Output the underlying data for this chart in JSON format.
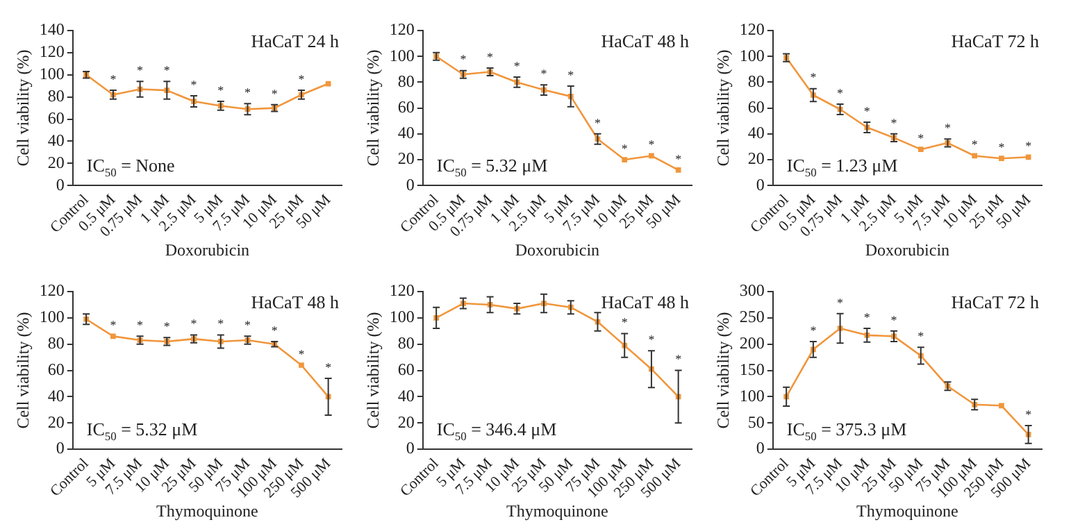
{
  "chart_data": [
    {
      "type": "line",
      "title": "HaCaT 24 h",
      "xlabel": "Doxorubicin",
      "ylabel": "Cell viability (%)",
      "categories": [
        "Control",
        "0.5 μM",
        "0.75 μM",
        "1 μM",
        "2.5 μM",
        "5 μM",
        "7.5 μM",
        "10 μM",
        "25 μM",
        "50 μM"
      ],
      "values": [
        100,
        82,
        87,
        86,
        76,
        72,
        69,
        70,
        82,
        92
      ],
      "errors": [
        3,
        4,
        7,
        8,
        5,
        4,
        5,
        3,
        4,
        null
      ],
      "value_labels": [
        null,
        "*",
        "*",
        "*",
        "*",
        "*",
        "*",
        "*",
        "*",
        null
      ],
      "color": "#f0963c",
      "marker": "square",
      "grid": false,
      "legend": false,
      "ylim": [
        0,
        140
      ],
      "yticks": [
        0,
        20,
        40,
        60,
        80,
        100,
        120,
        140
      ],
      "annotations": [
        "IC$_{50}$ = None"
      ]
    },
    {
      "type": "line",
      "title": "HaCaT 48 h",
      "xlabel": "Doxorubicin",
      "ylabel": "Cell viability (%)",
      "categories": [
        "Control",
        "0.5 μM",
        "0.75 μM",
        "1 μM",
        "2.5 μM",
        "5 μM",
        "7.5 μM",
        "10 μM",
        "25 μM",
        "50 μM"
      ],
      "values": [
        100,
        86,
        88,
        80,
        74,
        69,
        36,
        20,
        23,
        12
      ],
      "errors": [
        3,
        3,
        3,
        4,
        4,
        8,
        4,
        null,
        null,
        null
      ],
      "value_labels": [
        null,
        "*",
        "*",
        "*",
        "*",
        "*",
        "*",
        "*",
        "*",
        "*"
      ],
      "color": "#f0963c",
      "marker": "square",
      "grid": false,
      "legend": false,
      "ylim": [
        0,
        120
      ],
      "yticks": [
        0,
        20,
        40,
        60,
        80,
        100,
        120
      ],
      "annotations": [
        "IC$_{50}$ = 5.32 μM"
      ]
    },
    {
      "type": "line",
      "title": "HaCaT 72 h",
      "xlabel": "Doxorubicin",
      "ylabel": "Cell viability (%)",
      "categories": [
        "Control",
        "0.5 μM",
        "0.75 μM",
        "1 μM",
        "2.5 μM",
        "5 μM",
        "7.5 μM",
        "10 μM",
        "25 μM",
        "50 μM"
      ],
      "values": [
        99,
        70,
        59,
        45,
        37,
        28,
        33,
        23,
        21,
        22
      ],
      "errors": [
        3,
        5,
        4,
        4,
        3,
        null,
        3,
        null,
        null,
        null
      ],
      "value_labels": [
        null,
        "*",
        "*",
        "*",
        "*",
        "*",
        "*",
        "*",
        "*",
        "*"
      ],
      "color": "#f0963c",
      "marker": "square",
      "grid": false,
      "legend": false,
      "ylim": [
        0,
        120
      ],
      "yticks": [
        0,
        20,
        40,
        60,
        80,
        100,
        120
      ],
      "annotations": [
        "IC$_{50}$ = 1.23 μM"
      ]
    },
    {
      "type": "line",
      "title": "HaCaT 48 h",
      "xlabel": "Thymoquinone",
      "ylabel": "Cell viability (%)",
      "categories": [
        "Control",
        "5 μM",
        "7.5 μM",
        "10 μM",
        "25 μM",
        "50 μM",
        "75 μM",
        "100 μM",
        "250 μM",
        "500 μM"
      ],
      "values": [
        99,
        86,
        83,
        82,
        84,
        82,
        83,
        80,
        64,
        40
      ],
      "errors": [
        4,
        null,
        3,
        3,
        3,
        5,
        3,
        2,
        null,
        14
      ],
      "value_labels": [
        null,
        "*",
        "*",
        "*",
        "*",
        "*",
        "*",
        "*",
        "*",
        "*"
      ],
      "color": "#f0963c",
      "marker": "square",
      "grid": false,
      "legend": false,
      "ylim": [
        0,
        120
      ],
      "yticks": [
        0,
        20,
        40,
        60,
        80,
        100,
        120
      ],
      "annotations": [
        "IC$_{50}$ = 5.32 μM"
      ]
    },
    {
      "type": "line",
      "title": "HaCaT 48 h",
      "xlabel": "Thymoquinone",
      "ylabel": "Cell viability (%)",
      "categories": [
        "Control",
        "5 μM",
        "7.5 μM",
        "10 μM",
        "25 μM",
        "50 μM",
        "75 μM",
        "100 μM",
        "250 μM",
        "500 μM"
      ],
      "values": [
        100,
        111,
        110,
        107,
        111,
        108,
        97,
        79,
        61,
        40
      ],
      "errors": [
        8,
        4,
        6,
        4,
        7,
        5,
        7,
        9,
        14,
        20
      ],
      "value_labels": [
        null,
        null,
        null,
        null,
        null,
        null,
        null,
        "*",
        "*",
        "*"
      ],
      "color": "#f0963c",
      "marker": "square",
      "grid": false,
      "legend": false,
      "ylim": [
        0,
        120
      ],
      "yticks": [
        0,
        20,
        40,
        60,
        80,
        100,
        120
      ],
      "annotations": [
        "IC$_{50}$ = 346.4 μM"
      ]
    },
    {
      "type": "line",
      "title": "HaCaT 72 h",
      "xlabel": "Thymoquinone",
      "ylabel": "Cell viability (%)",
      "categories": [
        "Control",
        "5 μM",
        "7.5 μM",
        "10 μM",
        "25 μM",
        "50 μM",
        "75 μM",
        "100 μM",
        "250 μM",
        "500 μM"
      ],
      "values": [
        100,
        190,
        230,
        217,
        215,
        178,
        120,
        85,
        83,
        28
      ],
      "errors": [
        18,
        15,
        28,
        13,
        10,
        16,
        8,
        10,
        null,
        17
      ],
      "value_labels": [
        null,
        "*",
        "*",
        "*",
        "*",
        "*",
        null,
        null,
        null,
        "*"
      ],
      "color": "#f0963c",
      "marker": "square",
      "grid": false,
      "legend": false,
      "ylim": [
        0,
        300
      ],
      "yticks": [
        0,
        50,
        100,
        150,
        200,
        250,
        300
      ],
      "annotations": [
        "IC$_{50}$ = 375.3 μM"
      ]
    }
  ]
}
